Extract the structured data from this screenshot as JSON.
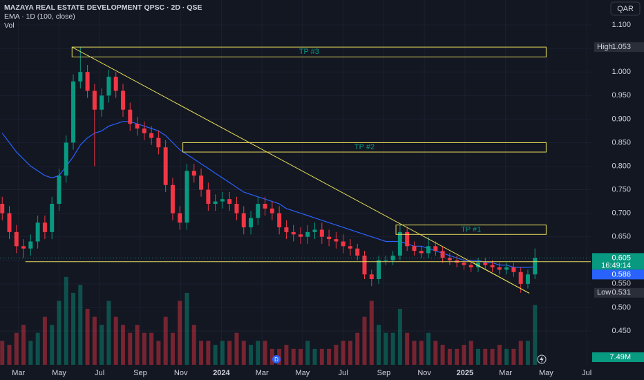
{
  "chart_data": {
    "type": "candlestick",
    "title": "MAZAYA REAL ESTATE DEVELOPMENT QPSC · 2D · QSE",
    "subtitle": "EMA · 1D (100, close)",
    "volume_label": "Vol",
    "currency": "QAR",
    "background": "#131722",
    "up_color": "#089981",
    "down_color": "#f23645",
    "drawing_color": "#e6dc5a",
    "grid": true,
    "x": [
      1.2,
      1.55,
      1.9,
      2.25,
      2.6,
      2.95,
      3.3,
      3.65,
      4.0,
      4.35,
      4.7,
      5.05,
      5.4,
      5.75,
      6.1,
      6.45,
      6.8,
      7.15,
      7.5,
      7.85,
      8.2,
      8.55,
      8.9,
      9.25,
      9.6,
      9.95,
      10.3,
      10.65,
      11.0,
      11.35,
      11.7,
      12.05,
      12.4,
      12.75,
      13.1,
      13.45,
      13.8,
      14.15,
      14.5,
      14.85,
      15.2,
      15.55,
      15.9,
      16.25,
      16.6,
      16.95,
      17.3,
      17.65,
      18.0,
      18.35,
      18.7,
      19.05,
      19.4,
      19.75,
      20.1,
      20.45,
      20.8,
      21.15,
      21.5,
      21.85,
      22.2,
      22.55,
      22.9,
      23.25,
      23.6,
      23.95,
      24.3,
      24.65,
      25.0,
      25.35,
      25.7,
      26.05,
      26.4,
      26.75,
      27.1,
      27.45
    ],
    "open": [
      0.72,
      0.7,
      0.66,
      0.63,
      0.625,
      0.64,
      0.68,
      0.66,
      0.72,
      0.78,
      0.85,
      0.98,
      1.0,
      0.96,
      0.92,
      0.95,
      0.99,
      0.96,
      0.92,
      0.89,
      0.88,
      0.87,
      0.86,
      0.84,
      0.76,
      0.7,
      0.68,
      0.79,
      0.78,
      0.75,
      0.72,
      0.725,
      0.73,
      0.72,
      0.7,
      0.67,
      0.69,
      0.72,
      0.71,
      0.7,
      0.67,
      0.66,
      0.655,
      0.65,
      0.66,
      0.665,
      0.65,
      0.645,
      0.64,
      0.63,
      0.625,
      0.61,
      0.57,
      0.56,
      0.6,
      0.6,
      0.61,
      0.66,
      0.63,
      0.62,
      0.615,
      0.63,
      0.62,
      0.605,
      0.6,
      0.595,
      0.59,
      0.585,
      0.595,
      0.59,
      0.585,
      0.58,
      0.585,
      0.575,
      0.55,
      0.57
    ],
    "high": [
      0.735,
      0.715,
      0.675,
      0.645,
      0.655,
      0.695,
      0.695,
      0.735,
      0.795,
      0.865,
      0.995,
      1.053,
      1.015,
      0.975,
      0.965,
      1.005,
      1.0,
      0.975,
      0.935,
      0.905,
      0.895,
      0.885,
      0.875,
      0.855,
      0.775,
      0.715,
      0.805,
      0.805,
      0.795,
      0.765,
      0.74,
      0.745,
      0.745,
      0.735,
      0.715,
      0.705,
      0.735,
      0.735,
      0.725,
      0.715,
      0.685,
      0.675,
      0.67,
      0.675,
      0.68,
      0.68,
      0.665,
      0.66,
      0.655,
      0.645,
      0.635,
      0.62,
      0.58,
      0.61,
      0.61,
      0.62,
      0.675,
      0.67,
      0.64,
      0.63,
      0.65,
      0.64,
      0.63,
      0.615,
      0.61,
      0.605,
      0.6,
      0.605,
      0.605,
      0.6,
      0.595,
      0.595,
      0.595,
      0.585,
      0.58,
      0.625
    ],
    "low": [
      0.685,
      0.645,
      0.615,
      0.605,
      0.61,
      0.625,
      0.645,
      0.645,
      0.705,
      0.765,
      0.835,
      0.965,
      0.945,
      0.8,
      0.905,
      0.935,
      0.945,
      0.905,
      0.875,
      0.865,
      0.855,
      0.845,
      0.825,
      0.745,
      0.685,
      0.665,
      0.665,
      0.765,
      0.735,
      0.705,
      0.705,
      0.71,
      0.705,
      0.685,
      0.655,
      0.655,
      0.675,
      0.695,
      0.685,
      0.655,
      0.645,
      0.64,
      0.635,
      0.635,
      0.645,
      0.635,
      0.63,
      0.625,
      0.615,
      0.61,
      0.6,
      0.56,
      0.545,
      0.55,
      0.59,
      0.59,
      0.6,
      0.62,
      0.61,
      0.605,
      0.605,
      0.61,
      0.595,
      0.59,
      0.585,
      0.58,
      0.575,
      0.575,
      0.58,
      0.575,
      0.57,
      0.57,
      0.565,
      0.531,
      0.54,
      0.56
    ],
    "close": [
      0.7,
      0.66,
      0.63,
      0.625,
      0.64,
      0.68,
      0.66,
      0.72,
      0.78,
      0.85,
      0.98,
      1.0,
      0.96,
      0.92,
      0.95,
      0.99,
      0.96,
      0.92,
      0.89,
      0.88,
      0.87,
      0.86,
      0.84,
      0.76,
      0.7,
      0.68,
      0.79,
      0.78,
      0.75,
      0.72,
      0.725,
      0.73,
      0.72,
      0.7,
      0.67,
      0.69,
      0.72,
      0.71,
      0.7,
      0.67,
      0.66,
      0.655,
      0.65,
      0.66,
      0.665,
      0.65,
      0.645,
      0.64,
      0.63,
      0.625,
      0.61,
      0.57,
      0.56,
      0.6,
      0.6,
      0.61,
      0.66,
      0.63,
      0.62,
      0.615,
      0.63,
      0.62,
      0.605,
      0.6,
      0.595,
      0.59,
      0.585,
      0.595,
      0.59,
      0.585,
      0.58,
      0.585,
      0.575,
      0.55,
      0.57,
      0.605
    ],
    "volume": [
      3,
      2.5,
      4,
      5,
      3,
      4,
      6,
      5,
      8,
      11,
      9,
      10,
      7,
      6,
      5,
      8,
      6,
      5,
      4,
      5,
      4,
      4,
      3,
      6,
      4,
      8,
      9,
      5,
      3,
      3,
      2.5,
      3,
      3,
      4,
      3,
      2.5,
      3,
      3,
      2,
      2,
      2.5,
      2,
      2,
      3,
      2,
      2,
      2,
      2.5,
      3,
      3,
      4,
      6,
      8,
      5,
      4,
      4,
      7,
      4,
      3,
      3,
      4,
      3,
      2.5,
      2,
      2,
      2.5,
      3,
      2,
      2,
      2,
      2.5,
      2,
      2,
      3,
      3,
      7.49
    ],
    "volume_lim": [
      0,
      11.5
    ],
    "last_volume_label": "7.49M",
    "ema": {
      "color": "#2962ff",
      "values": [
        0.87,
        0.85,
        0.83,
        0.815,
        0.8,
        0.79,
        0.78,
        0.775,
        0.78,
        0.8,
        0.82,
        0.845,
        0.86,
        0.87,
        0.875,
        0.885,
        0.89,
        0.895,
        0.895,
        0.89,
        0.885,
        0.88,
        0.875,
        0.865,
        0.85,
        0.835,
        0.825,
        0.815,
        0.805,
        0.795,
        0.785,
        0.775,
        0.765,
        0.755,
        0.745,
        0.74,
        0.735,
        0.73,
        0.725,
        0.72,
        0.71,
        0.705,
        0.7,
        0.695,
        0.69,
        0.685,
        0.68,
        0.675,
        0.67,
        0.665,
        0.66,
        0.655,
        0.65,
        0.645,
        0.64,
        0.64,
        0.64,
        0.635,
        0.63,
        0.63,
        0.625,
        0.62,
        0.615,
        0.61,
        0.605,
        0.6,
        0.6,
        0.6,
        0.595,
        0.595,
        0.59,
        0.59,
        0.585,
        0.585,
        0.585,
        0.586
      ]
    },
    "last_countdown": "16:49:14",
    "high_label": "High",
    "low_label": "Low",
    "xlim": [
      1.09,
      30.2
    ],
    "xticks": [
      {
        "value": 2,
        "label": "Mar"
      },
      {
        "value": 4,
        "label": "May"
      },
      {
        "value": 6,
        "label": "Jul"
      },
      {
        "value": 8,
        "label": "Sep"
      },
      {
        "value": 10,
        "label": "Nov"
      },
      {
        "value": 12,
        "label": "2024"
      },
      {
        "value": 14,
        "label": "Mar"
      },
      {
        "value": 16,
        "label": "May"
      },
      {
        "value": 18,
        "label": "Jul"
      },
      {
        "value": 20,
        "label": "Sep"
      },
      {
        "value": 22,
        "label": "Nov"
      },
      {
        "value": 24,
        "label": "2025"
      },
      {
        "value": 26,
        "label": "Mar"
      },
      {
        "value": 28,
        "label": "May"
      },
      {
        "value": 30,
        "label": "Jul"
      }
    ],
    "ylim": [
      0.378,
      1.153
    ],
    "yticks": [
      {
        "value": 1.1,
        "label": "1.100"
      },
      {
        "value": 1.05,
        "label": "1.050"
      },
      {
        "value": 1.0,
        "label": "1.000"
      },
      {
        "value": 0.95,
        "label": "0.950"
      },
      {
        "value": 0.9,
        "label": "0.900"
      },
      {
        "value": 0.85,
        "label": "0.850"
      },
      {
        "value": 0.8,
        "label": "0.800"
      },
      {
        "value": 0.75,
        "label": "0.750"
      },
      {
        "value": 0.7,
        "label": "0.700"
      },
      {
        "value": 0.65,
        "label": "0.650"
      },
      {
        "value": 0.6,
        "label": "0.600"
      },
      {
        "value": 0.55,
        "label": "0.550"
      },
      {
        "value": 0.5,
        "label": "0.500"
      },
      {
        "value": 0.45,
        "label": "0.450"
      }
    ],
    "zones": [
      {
        "label": "TP #3",
        "top": 1.053,
        "bottom": 1.032,
        "start": 4.64,
        "end": 28.0
      },
      {
        "label": "TP #2",
        "top": 0.85,
        "bottom": 0.83,
        "start": 10.1,
        "end": 28.0
      },
      {
        "label": "TP #1",
        "top": 0.675,
        "bottom": 0.655,
        "start": 20.6,
        "end": 28.0
      }
    ],
    "lines": [
      {
        "x": [
          4.64,
          27.17
        ],
        "y": [
          1.053,
          0.53
        ]
      },
      {
        "x": [
          2.34,
          30.2
        ],
        "y": [
          0.597,
          0.597
        ]
      },
      {
        "x": [
          24.4,
          27.17
        ],
        "y": [
          0.595,
          0.53
        ]
      }
    ]
  }
}
